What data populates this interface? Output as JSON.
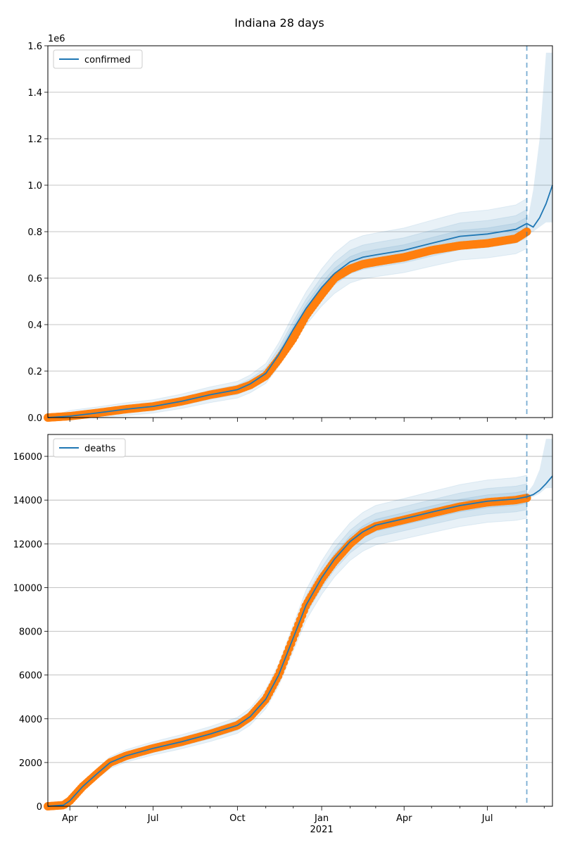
{
  "figure": {
    "suptitle": "Indiana 28 days"
  },
  "chart_data": [
    {
      "type": "line",
      "legend": {
        "label": "confirmed",
        "placement": "top-left"
      },
      "offset_label": "1e6",
      "ylim": [
        0,
        1.6
      ],
      "yticks": [
        0.0,
        0.2,
        0.4,
        0.6,
        0.8,
        1.0,
        1.2,
        1.4,
        1.6
      ],
      "ytick_labels": [
        "0.0",
        "0.2",
        "0.4",
        "0.6",
        "0.8",
        "1.0",
        "1.2",
        "1.4",
        "1.6"
      ],
      "xlim": [
        "2020-03-08",
        "2021-09-10"
      ],
      "grid": "y",
      "forecast_start": "2021-08-13",
      "observed": {
        "x": [
          "2020-03-08",
          "2020-04-01",
          "2020-05-01",
          "2020-06-01",
          "2020-07-01",
          "2020-08-01",
          "2020-09-01",
          "2020-10-01",
          "2020-10-15",
          "2020-11-01",
          "2020-11-15",
          "2020-12-01",
          "2020-12-15",
          "2021-01-01",
          "2021-01-15",
          "2021-02-01",
          "2021-02-15",
          "2021-03-01",
          "2021-04-01",
          "2021-05-01",
          "2021-06-01",
          "2021-07-01",
          "2021-08-01",
          "2021-08-13"
        ],
        "y": [
          0.0,
          0.006,
          0.02,
          0.036,
          0.048,
          0.07,
          0.098,
          0.12,
          0.14,
          0.18,
          0.25,
          0.34,
          0.44,
          0.53,
          0.6,
          0.64,
          0.66,
          0.67,
          0.69,
          0.72,
          0.74,
          0.75,
          0.77,
          0.8
        ]
      },
      "fit": {
        "x": [
          "2020-03-08",
          "2020-04-01",
          "2020-05-01",
          "2020-06-01",
          "2020-07-01",
          "2020-08-01",
          "2020-09-01",
          "2020-10-01",
          "2020-10-15",
          "2020-11-01",
          "2020-11-15",
          "2020-12-01",
          "2020-12-15",
          "2021-01-01",
          "2021-01-15",
          "2021-02-01",
          "2021-02-15",
          "2021-03-01",
          "2021-04-01",
          "2021-05-01",
          "2021-06-01",
          "2021-07-01",
          "2021-08-01",
          "2021-08-13",
          "2021-08-20",
          "2021-08-27",
          "2021-09-03",
          "2021-09-10"
        ],
        "y": [
          0.0,
          0.006,
          0.02,
          0.036,
          0.048,
          0.07,
          0.098,
          0.12,
          0.145,
          0.19,
          0.27,
          0.38,
          0.47,
          0.56,
          0.62,
          0.67,
          0.69,
          0.7,
          0.72,
          0.75,
          0.78,
          0.79,
          0.81,
          0.835,
          0.82,
          0.86,
          0.92,
          1.0
        ]
      },
      "band_spread": [
        0.02,
        0.045,
        0.08
      ],
      "forecast_band_upper": [
        0.83,
        0.98,
        1.2,
        1.57
      ],
      "forecast_band_lower": [
        0.79,
        0.8,
        0.82,
        0.84
      ]
    },
    {
      "type": "line",
      "legend": {
        "label": "deaths",
        "placement": "top-left"
      },
      "ylim": [
        0,
        17000
      ],
      "yticks": [
        0,
        2000,
        4000,
        6000,
        8000,
        10000,
        12000,
        14000,
        16000
      ],
      "ytick_labels": [
        "0",
        "2000",
        "4000",
        "6000",
        "8000",
        "10000",
        "12000",
        "14000",
        "16000"
      ],
      "xlim": [
        "2020-03-08",
        "2021-09-10"
      ],
      "xticks": [
        "2020-04-01",
        "2020-07-01",
        "2020-10-01",
        "2021-01-01",
        "2021-04-01",
        "2021-07-01"
      ],
      "xtick_labels": [
        "Apr",
        "Jul",
        "Oct",
        "Jan",
        "Apr",
        "Jul"
      ],
      "xtick_year_label": "2021",
      "grid": "y",
      "forecast_start": "2021-08-13",
      "observed": {
        "x": [
          "2020-03-08",
          "2020-03-25",
          "2020-04-01",
          "2020-04-15",
          "2020-05-01",
          "2020-05-15",
          "2020-06-01",
          "2020-07-01",
          "2020-08-01",
          "2020-09-01",
          "2020-10-01",
          "2020-10-15",
          "2020-11-01",
          "2020-11-15",
          "2020-12-01",
          "2020-12-15",
          "2021-01-01",
          "2021-01-15",
          "2021-02-01",
          "2021-02-15",
          "2021-03-01",
          "2021-04-01",
          "2021-05-01",
          "2021-06-01",
          "2021-07-01",
          "2021-08-01",
          "2021-08-13"
        ],
        "y": [
          0,
          50,
          250,
          900,
          1500,
          2000,
          2300,
          2650,
          2950,
          3300,
          3700,
          4100,
          4900,
          6000,
          7700,
          9200,
          10400,
          11200,
          12000,
          12500,
          12800,
          13100,
          13400,
          13700,
          13900,
          14000,
          14100
        ]
      },
      "fit": {
        "x": [
          "2020-03-08",
          "2020-03-25",
          "2020-04-01",
          "2020-04-15",
          "2020-05-01",
          "2020-05-15",
          "2020-06-01",
          "2020-07-01",
          "2020-08-01",
          "2020-09-01",
          "2020-10-01",
          "2020-10-15",
          "2020-11-01",
          "2020-11-15",
          "2020-12-01",
          "2020-12-15",
          "2021-01-01",
          "2021-01-15",
          "2021-02-01",
          "2021-02-15",
          "2021-03-01",
          "2021-04-01",
          "2021-05-01",
          "2021-06-01",
          "2021-07-01",
          "2021-08-01",
          "2021-08-13",
          "2021-08-20",
          "2021-08-27",
          "2021-09-03",
          "2021-09-10"
        ],
        "y": [
          0,
          50,
          250,
          900,
          1500,
          2000,
          2300,
          2650,
          2950,
          3300,
          3700,
          4100,
          4900,
          6000,
          7700,
          9200,
          10450,
          11300,
          12100,
          12550,
          12850,
          13150,
          13450,
          13750,
          13950,
          14050,
          14150,
          14250,
          14450,
          14750,
          15100
        ]
      },
      "band_spread": [
        150,
        300,
        500
      ],
      "forecast_band_upper": [
        14300,
        14700,
        15400,
        16800
      ],
      "forecast_band_lower": [
        14100,
        14150,
        14300,
        14550
      ]
    }
  ]
}
